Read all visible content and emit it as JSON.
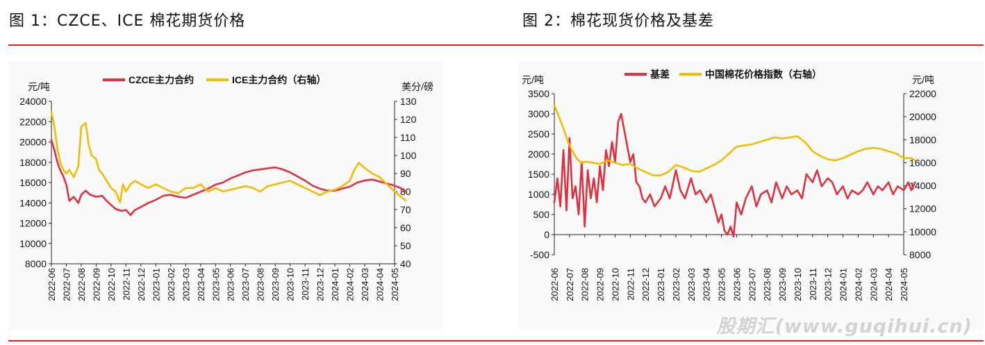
{
  "figures": [
    {
      "id": "fig1",
      "title": "图 1：CZCE、ICE 棉花期货价格"
    },
    {
      "id": "fig2",
      "title": "图 2：棉花现货价格及基差"
    }
  ],
  "watermark": "股期汇(www.guqihui.cn)",
  "chart_data": [
    {
      "type": "line",
      "title": "图 1：CZCE、ICE 棉花期货价格",
      "ylabel": "元/吨",
      "y2label": "美分/磅",
      "ylim": [
        8000,
        24000
      ],
      "yticks": [
        8000,
        10000,
        12000,
        14000,
        16000,
        18000,
        20000,
        22000,
        24000
      ],
      "y2lim": [
        40,
        130
      ],
      "y2ticks": [
        40,
        50,
        60,
        70,
        80,
        90,
        100,
        110,
        120,
        130
      ],
      "x_tick_labels": [
        "2022-06",
        "2022-07",
        "2022-08",
        "2022-09",
        "2022-10",
        "2022-11",
        "2022-12",
        "2023-01",
        "2023-02",
        "2023-03",
        "2023-04",
        "2023-05",
        "2023-06",
        "2023-07",
        "2023-08",
        "2023-09",
        "2023-10",
        "2023-11",
        "2023-12",
        "2024-01",
        "2024-02",
        "2024-03",
        "2024-04",
        "2024-05"
      ],
      "legend": "top",
      "series": [
        {
          "name": "CZCE主力合约",
          "axis": "left",
          "color": "#e03040",
          "x": [
            0,
            0.2,
            0.4,
            0.6,
            0.8,
            1.0,
            1.2,
            1.5,
            1.8,
            2.0,
            2.3,
            2.6,
            3.0,
            3.4,
            3.7,
            4.0,
            4.3,
            4.7,
            5.0,
            5.3,
            5.6,
            6.0,
            6.5,
            7.0,
            7.5,
            8.0,
            8.5,
            9.0,
            9.5,
            10.0,
            10.5,
            11.0,
            11.5,
            12.0,
            12.5,
            13.0,
            13.5,
            14.0,
            14.5,
            15.0,
            15.5,
            16.0,
            16.5,
            17.0,
            17.5,
            18.0,
            18.5,
            19.0,
            19.5,
            20.0,
            20.5,
            21.0,
            21.5,
            22.0,
            22.5,
            23.0,
            23.5,
            23.75
          ],
          "values": [
            20200,
            19200,
            18000,
            17200,
            16600,
            15800,
            14200,
            14600,
            14000,
            14800,
            15200,
            14800,
            14600,
            14700,
            14200,
            13800,
            13400,
            13200,
            13300,
            12800,
            13300,
            13600,
            14000,
            14300,
            14700,
            14800,
            14600,
            14500,
            14800,
            15100,
            15400,
            15800,
            16000,
            16400,
            16700,
            17000,
            17200,
            17300,
            17400,
            17500,
            17300,
            17000,
            16600,
            16200,
            15700,
            15400,
            15200,
            15200,
            15400,
            15600,
            16000,
            16200,
            16300,
            16100,
            15900,
            15700,
            15400,
            15100
          ]
        },
        {
          "name": "ICE主力合约（右轴）",
          "axis": "right",
          "color": "#f5bb00",
          "x": [
            0,
            0.2,
            0.4,
            0.6,
            0.8,
            1.0,
            1.2,
            1.5,
            1.8,
            2.0,
            2.3,
            2.5,
            2.7,
            3.0,
            3.2,
            3.4,
            3.7,
            4.0,
            4.3,
            4.6,
            4.8,
            5.0,
            5.3,
            5.6,
            6.0,
            6.5,
            7.0,
            7.5,
            8.0,
            8.5,
            9.0,
            9.5,
            10.0,
            10.5,
            11.0,
            11.5,
            12.0,
            12.5,
            13.0,
            13.5,
            14.0,
            14.5,
            15.0,
            15.5,
            16.0,
            16.5,
            17.0,
            17.5,
            18.0,
            18.5,
            19.0,
            19.5,
            20.0,
            20.3,
            20.6,
            21.0,
            21.5,
            22.0,
            22.5,
            23.0,
            23.3,
            23.75
          ],
          "values": [
            124,
            116,
            104,
            96,
            92,
            90,
            92,
            88,
            94,
            116,
            118,
            106,
            100,
            98,
            92,
            90,
            86,
            82,
            80,
            74,
            84,
            80,
            84,
            86,
            84,
            82,
            84,
            82,
            80,
            79,
            82,
            82,
            84,
            80,
            82,
            80,
            81,
            82,
            83,
            82,
            80,
            83,
            84,
            85,
            86,
            84,
            82,
            80,
            78,
            80,
            81,
            83,
            86,
            92,
            96,
            93,
            90,
            88,
            84,
            80,
            78,
            75
          ]
        }
      ]
    },
    {
      "type": "line",
      "title": "图 2：棉花现货价格及基差",
      "ylabel": "元/吨",
      "y2label": "元/吨",
      "ylim": [
        -500,
        3500
      ],
      "yticks": [
        -500,
        0,
        500,
        1000,
        1500,
        2000,
        2500,
        3000,
        3500
      ],
      "y2lim": [
        8000,
        22000
      ],
      "y2ticks": [
        8000,
        10000,
        12000,
        14000,
        16000,
        18000,
        20000,
        22000
      ],
      "x_tick_labels": [
        "2022-06",
        "2022-07",
        "2022-08",
        "2022-09",
        "2022-10",
        "2022-11",
        "2022-12",
        "2023-01",
        "2023-02",
        "2023-03",
        "2023-04",
        "2023-05",
        "2023-06",
        "2023-07",
        "2023-08",
        "2023-09",
        "2023-10",
        "2023-11",
        "2023-12",
        "2024-01",
        "2024-02",
        "2024-03",
        "2024-04",
        "2024-05"
      ],
      "legend": "top",
      "series": [
        {
          "name": "基差",
          "axis": "left",
          "color": "#e03040",
          "x": [
            0,
            0.2,
            0.4,
            0.6,
            0.8,
            1.0,
            1.2,
            1.4,
            1.6,
            1.8,
            2.0,
            2.2,
            2.4,
            2.6,
            2.8,
            3.0,
            3.2,
            3.4,
            3.6,
            3.8,
            4.0,
            4.2,
            4.4,
            4.6,
            4.8,
            5.0,
            5.2,
            5.4,
            5.6,
            5.8,
            6.0,
            6.3,
            6.6,
            7.0,
            7.3,
            7.6,
            8.0,
            8.3,
            8.6,
            9.0,
            9.3,
            9.6,
            10.0,
            10.3,
            10.6,
            10.8,
            11.0,
            11.2,
            11.4,
            11.6,
            11.8,
            12.0,
            12.3,
            12.6,
            13.0,
            13.3,
            13.6,
            14.0,
            14.3,
            14.6,
            15.0,
            15.3,
            15.6,
            16.0,
            16.3,
            16.6,
            17.0,
            17.3,
            17.6,
            18.0,
            18.3,
            18.6,
            19.0,
            19.3,
            19.6,
            20.0,
            20.3,
            20.6,
            21.0,
            21.3,
            21.6,
            22.0,
            22.3,
            22.6,
            23.0,
            23.3,
            23.5,
            23.75
          ],
          "values": [
            800,
            1400,
            700,
            2100,
            600,
            2400,
            900,
            1200,
            500,
            1800,
            200,
            1600,
            900,
            1400,
            800,
            1700,
            1100,
            2100,
            1700,
            2300,
            1800,
            2800,
            3000,
            2600,
            2200,
            1800,
            2000,
            1300,
            1200,
            900,
            800,
            1000,
            700,
            900,
            1200,
            900,
            1600,
            1100,
            900,
            1400,
            1000,
            1100,
            800,
            1000,
            600,
            300,
            500,
            100,
            0,
            200,
            -50,
            800,
            500,
            900,
            1200,
            700,
            1000,
            1100,
            800,
            1300,
            900,
            1200,
            1000,
            1100,
            900,
            1500,
            1300,
            1600,
            1200,
            1400,
            1300,
            1000,
            1200,
            900,
            1100,
            1000,
            1100,
            1300,
            1000,
            1200,
            1100,
            1300,
            1000,
            1200,
            1100,
            1300,
            1100,
            1300
          ]
        },
        {
          "name": "中国棉花价格指数（右轴）",
          "axis": "right",
          "color": "#f5bb00",
          "x": [
            0,
            0.3,
            0.6,
            0.9,
            1.2,
            1.5,
            1.8,
            2.1,
            2.5,
            3.0,
            3.5,
            4.0,
            4.5,
            5.0,
            5.5,
            6.0,
            6.5,
            7.0,
            7.5,
            8.0,
            8.5,
            9.0,
            9.5,
            10.0,
            10.5,
            11.0,
            11.5,
            12.0,
            12.5,
            13.0,
            13.5,
            14.0,
            14.5,
            15.0,
            15.5,
            16.0,
            16.5,
            17.0,
            17.5,
            18.0,
            18.5,
            19.0,
            19.5,
            20.0,
            20.5,
            21.0,
            21.5,
            22.0,
            22.5,
            23.0,
            23.5,
            23.75
          ],
          "values": [
            21000,
            20000,
            19000,
            17800,
            17000,
            16300,
            16000,
            16100,
            16000,
            15900,
            16200,
            16000,
            15800,
            15900,
            15500,
            15200,
            14900,
            14900,
            15200,
            15800,
            15600,
            15300,
            15200,
            15500,
            15800,
            16200,
            16800,
            17400,
            17500,
            17600,
            17800,
            18000,
            18200,
            18100,
            18200,
            18300,
            17800,
            17000,
            16600,
            16300,
            16200,
            16400,
            16700,
            17000,
            17200,
            17300,
            17200,
            17000,
            16800,
            16400,
            16400,
            16200
          ]
        }
      ]
    }
  ]
}
